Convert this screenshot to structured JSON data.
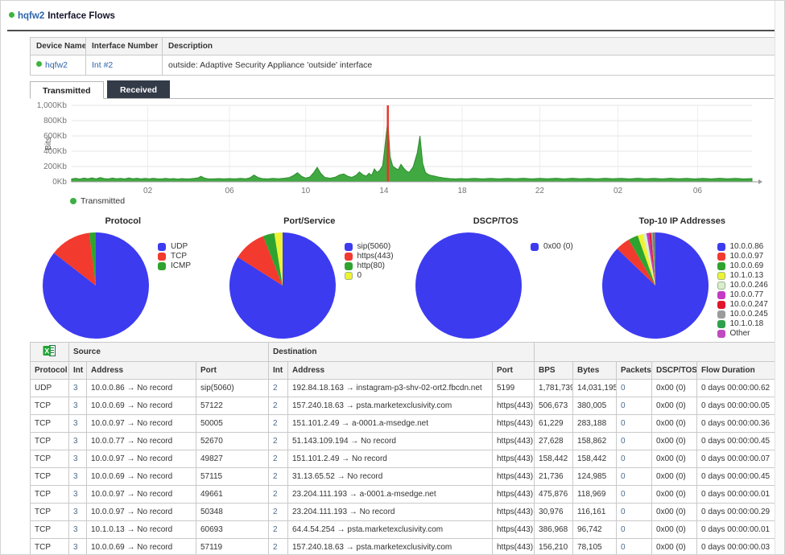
{
  "header": {
    "device": "hqfw2",
    "title": "Interface Flows"
  },
  "device_table": {
    "headers": [
      "Device Name",
      "Interface Number",
      "Description"
    ],
    "row": {
      "device": "hqfw2",
      "interface": "Int #2",
      "description": "outside: Adaptive Security Appliance 'outside' interface"
    }
  },
  "tabs": [
    {
      "label": "Transmitted",
      "active": true
    },
    {
      "label": "Received",
      "active": false
    }
  ],
  "colors": {
    "status_green": "#3eb53e",
    "link_blue": "#2e64ad",
    "tab_dark": "#333b49",
    "series_green": "#41a941",
    "event_red": "#e8352b"
  },
  "chart_data": [
    {
      "type": "area",
      "title": "",
      "ylabel": "Bits",
      "ylim": [
        0,
        1000
      ],
      "grid": true,
      "legend_position": "bottom-left",
      "yticks": [
        {
          "value": 0,
          "label": "0Kb"
        },
        {
          "value": 200,
          "label": "200Kb"
        },
        {
          "value": 400,
          "label": "400Kb"
        },
        {
          "value": 600,
          "label": "600Kb"
        },
        {
          "value": 800,
          "label": "800Kb"
        },
        {
          "value": 1000,
          "label": "1,000Kb"
        }
      ],
      "xticks": [
        {
          "pos": 0.112,
          "label": "02"
        },
        {
          "pos": 0.232,
          "label": "06"
        },
        {
          "pos": 0.344,
          "label": "10"
        },
        {
          "pos": 0.459,
          "label": "14"
        },
        {
          "pos": 0.574,
          "label": "18"
        },
        {
          "pos": 0.688,
          "label": "22"
        },
        {
          "pos": 0.803,
          "label": "02"
        },
        {
          "pos": 0.92,
          "label": "06"
        }
      ],
      "event_line": {
        "pos": 0.4647,
        "color": "#e8352b"
      },
      "series": [
        {
          "name": "Transmitted",
          "color": "#41a941",
          "points": [
            [
              0.0,
              38
            ],
            [
              0.006,
              46
            ],
            [
              0.012,
              36
            ],
            [
              0.018,
              48
            ],
            [
              0.024,
              40
            ],
            [
              0.03,
              52
            ],
            [
              0.036,
              38
            ],
            [
              0.042,
              55
            ],
            [
              0.048,
              42
            ],
            [
              0.054,
              38
            ],
            [
              0.06,
              48
            ],
            [
              0.066,
              40
            ],
            [
              0.072,
              44
            ],
            [
              0.078,
              38
            ],
            [
              0.084,
              50
            ],
            [
              0.09,
              40
            ],
            [
              0.096,
              46
            ],
            [
              0.102,
              38
            ],
            [
              0.108,
              44
            ],
            [
              0.114,
              38
            ],
            [
              0.12,
              46
            ],
            [
              0.126,
              40
            ],
            [
              0.132,
              38
            ],
            [
              0.138,
              44
            ],
            [
              0.144,
              38
            ],
            [
              0.15,
              42
            ],
            [
              0.156,
              36
            ],
            [
              0.162,
              42
            ],
            [
              0.168,
              38
            ],
            [
              0.174,
              40
            ],
            [
              0.18,
              44
            ],
            [
              0.186,
              52
            ],
            [
              0.19,
              72
            ],
            [
              0.195,
              50
            ],
            [
              0.2,
              40
            ],
            [
              0.208,
              38
            ],
            [
              0.216,
              42
            ],
            [
              0.224,
              38
            ],
            [
              0.232,
              42
            ],
            [
              0.24,
              38
            ],
            [
              0.248,
              44
            ],
            [
              0.256,
              40
            ],
            [
              0.262,
              52
            ],
            [
              0.268,
              88
            ],
            [
              0.274,
              56
            ],
            [
              0.28,
              42
            ],
            [
              0.288,
              38
            ],
            [
              0.296,
              44
            ],
            [
              0.304,
              40
            ],
            [
              0.312,
              46
            ],
            [
              0.32,
              56
            ],
            [
              0.326,
              82
            ],
            [
              0.332,
              118
            ],
            [
              0.338,
              72
            ],
            [
              0.344,
              48
            ],
            [
              0.35,
              62
            ],
            [
              0.356,
              122
            ],
            [
              0.361,
              188
            ],
            [
              0.366,
              112
            ],
            [
              0.372,
              58
            ],
            [
              0.38,
              46
            ],
            [
              0.388,
              62
            ],
            [
              0.394,
              92
            ],
            [
              0.4,
              102
            ],
            [
              0.406,
              72
            ],
            [
              0.412,
              58
            ],
            [
              0.418,
              84
            ],
            [
              0.423,
              128
            ],
            [
              0.428,
              92
            ],
            [
              0.433,
              74
            ],
            [
              0.437,
              112
            ],
            [
              0.441,
              84
            ],
            [
              0.445,
              168
            ],
            [
              0.449,
              122
            ],
            [
              0.453,
              152
            ],
            [
              0.457,
              210
            ],
            [
              0.46,
              420
            ],
            [
              0.4647,
              810
            ],
            [
              0.468,
              330
            ],
            [
              0.472,
              205
            ],
            [
              0.476,
              178
            ],
            [
              0.48,
              158
            ],
            [
              0.484,
              228
            ],
            [
              0.488,
              178
            ],
            [
              0.492,
              142
            ],
            [
              0.496,
              122
            ],
            [
              0.502,
              196
            ],
            [
              0.508,
              380
            ],
            [
              0.512,
              600
            ],
            [
              0.516,
              240
            ],
            [
              0.52,
              122
            ],
            [
              0.525,
              92
            ],
            [
              0.53,
              80
            ],
            [
              0.535,
              70
            ],
            [
              0.54,
              60
            ],
            [
              0.548,
              48
            ],
            [
              0.556,
              42
            ],
            [
              0.564,
              38
            ],
            [
              0.572,
              42
            ],
            [
              0.58,
              38
            ],
            [
              0.592,
              44
            ],
            [
              0.604,
              38
            ],
            [
              0.616,
              44
            ],
            [
              0.628,
              38
            ],
            [
              0.64,
              44
            ],
            [
              0.652,
              40
            ],
            [
              0.664,
              46
            ],
            [
              0.676,
              38
            ],
            [
              0.688,
              44
            ],
            [
              0.7,
              40
            ],
            [
              0.712,
              46
            ],
            [
              0.724,
              38
            ],
            [
              0.736,
              46
            ],
            [
              0.748,
              40
            ],
            [
              0.76,
              44
            ],
            [
              0.772,
              38
            ],
            [
              0.784,
              46
            ],
            [
              0.796,
              40
            ],
            [
              0.808,
              44
            ],
            [
              0.82,
              38
            ],
            [
              0.832,
              46
            ],
            [
              0.844,
              40
            ],
            [
              0.856,
              44
            ],
            [
              0.868,
              38
            ],
            [
              0.88,
              46
            ],
            [
              0.892,
              40
            ],
            [
              0.904,
              44
            ],
            [
              0.916,
              38
            ],
            [
              0.928,
              44
            ],
            [
              0.94,
              38
            ],
            [
              0.952,
              46
            ],
            [
              0.964,
              40
            ],
            [
              0.976,
              44
            ],
            [
              0.988,
              38
            ],
            [
              1.0,
              42
            ]
          ]
        }
      ]
    },
    {
      "type": "pie",
      "title": "Protocol",
      "labels": [
        "UDP",
        "TCP",
        "ICMP"
      ],
      "values": [
        85.5,
        12.5,
        2.0
      ],
      "colors": [
        "#3c3bf0",
        "#f23a2e",
        "#2fa32f"
      ]
    },
    {
      "type": "pie",
      "title": "Port/Service",
      "labels": [
        "sip(5060)",
        "https(443)",
        "http(80)",
        "0"
      ],
      "values": [
        84.0,
        10.0,
        3.5,
        2.5
      ],
      "colors": [
        "#3c3bf0",
        "#f23a2e",
        "#2fa32f",
        "#eef233"
      ]
    },
    {
      "type": "pie",
      "title": "DSCP/TOS",
      "labels": [
        "0x00 (0)"
      ],
      "values": [
        100
      ],
      "colors": [
        "#3c3bf0"
      ]
    },
    {
      "type": "pie",
      "title": "Top-10 IP Addresses",
      "labels": [
        "10.0.0.86",
        "10.0.0.97",
        "10.0.0.69",
        "10.1.0.13",
        "10.0.0.246",
        "10.0.0.77",
        "10.0.0.247",
        "10.0.0.245",
        "10.1.0.18",
        "Other"
      ],
      "values": [
        87.2,
        4.4,
        3.0,
        1.6,
        1.1,
        0.8,
        0.6,
        0.5,
        0.5,
        0.3
      ],
      "colors": [
        "#3c3bf0",
        "#f23a2e",
        "#2fa32f",
        "#eef233",
        "#d9edcf",
        "#c43ac4",
        "#e0162d",
        "#9b9b9b",
        "#2fa04d",
        "#c04ac0"
      ]
    }
  ],
  "flow_table": {
    "group_headers": {
      "source": "Source",
      "destination": "Destination"
    },
    "export_icon": "excel-export-icon",
    "columns": [
      "Protocol",
      "Int",
      "Address",
      "Port",
      "Int",
      "Address",
      "Port",
      "BPS",
      "Bytes",
      "Packets",
      "DSCP/TOS",
      "Flow Duration"
    ],
    "rows": [
      [
        "UDP",
        "3",
        "10.0.0.86 → No record",
        "sip(5060)",
        "2",
        "192.84.18.163 → instagram-p3-shv-02-ort2.fbcdn.net",
        "5199",
        "1,781,739",
        "14,031,195",
        "0",
        "0x00 (0)",
        "0 days 00:00:00.62"
      ],
      [
        "TCP",
        "3",
        "10.0.0.69 → No record",
        "57122",
        "2",
        "157.240.18.63 → psta.marketexclusivity.com",
        "https(443)",
        "506,673",
        "380,005",
        "0",
        "0x00 (0)",
        "0 days 00:00:00.05"
      ],
      [
        "TCP",
        "3",
        "10.0.0.97 → No record",
        "50005",
        "2",
        "151.101.2.49 → a-0001.a-msedge.net",
        "https(443)",
        "61,229",
        "283,188",
        "0",
        "0x00 (0)",
        "0 days 00:00:00.36"
      ],
      [
        "TCP",
        "3",
        "10.0.0.77 → No record",
        "52670",
        "2",
        "51.143.109.194 → No record",
        "https(443)",
        "27,628",
        "158,862",
        "0",
        "0x00 (0)",
        "0 days 00:00:00.45"
      ],
      [
        "TCP",
        "3",
        "10.0.0.97 → No record",
        "49827",
        "2",
        "151.101.2.49 → No record",
        "https(443)",
        "158,442",
        "158,442",
        "0",
        "0x00 (0)",
        "0 days 00:00:00.07"
      ],
      [
        "TCP",
        "3",
        "10.0.0.69 → No record",
        "57115",
        "2",
        "31.13.65.52 → No record",
        "https(443)",
        "21,736",
        "124,985",
        "0",
        "0x00 (0)",
        "0 days 00:00:00.45"
      ],
      [
        "TCP",
        "3",
        "10.0.0.97 → No record",
        "49661",
        "2",
        "23.204.111.193 → a-0001.a-msedge.net",
        "https(443)",
        "475,876",
        "118,969",
        "0",
        "0x00 (0)",
        "0 days 00:00:00.01"
      ],
      [
        "TCP",
        "3",
        "10.0.0.97 → No record",
        "50348",
        "2",
        "23.204.111.193 → No record",
        "https(443)",
        "30,976",
        "116,161",
        "0",
        "0x00 (0)",
        "0 days 00:00:00.29"
      ],
      [
        "TCP",
        "3",
        "10.1.0.13 → No record",
        "60693",
        "2",
        "64.4.54.254 → psta.marketexclusivity.com",
        "https(443)",
        "386,968",
        "96,742",
        "0",
        "0x00 (0)",
        "0 days 00:00:00.01"
      ],
      [
        "TCP",
        "3",
        "10.0.0.69 → No record",
        "57119",
        "2",
        "157.240.18.63 → psta.marketexclusivity.com",
        "https(443)",
        "156,210",
        "78,105",
        "0",
        "0x00 (0)",
        "0 days 00:00:00.03"
      ],
      [
        "",
        "",
        "",
        "",
        "",
        "",
        "",
        "",
        "",
        "",
        "",
        ""
      ]
    ]
  }
}
